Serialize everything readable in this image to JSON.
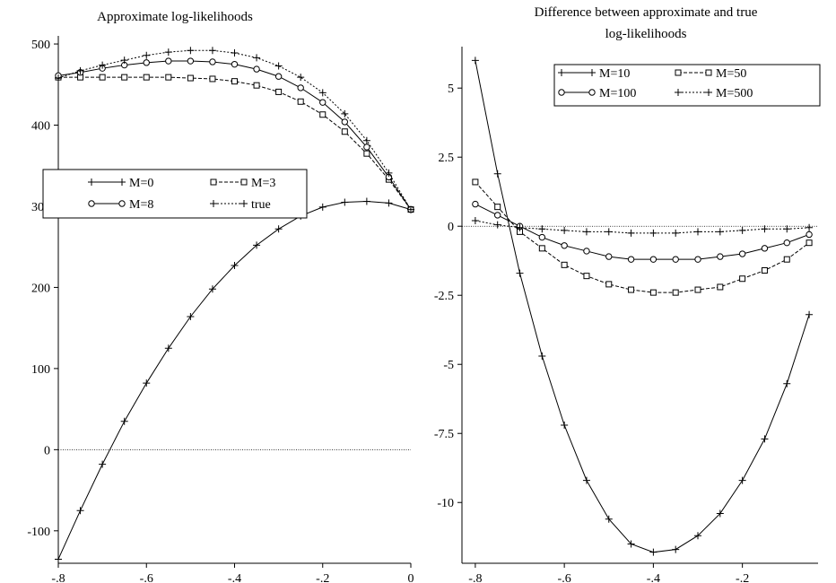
{
  "chart_data": [
    {
      "type": "line",
      "title": "Approximate log-likelihoods",
      "title_lines": [
        "Approximate log-likelihoods"
      ],
      "xlabel": "",
      "ylabel": "",
      "xlim": [
        -0.8,
        0
      ],
      "ylim": [
        -140,
        510
      ],
      "xticks": [
        -0.8,
        -0.6,
        -0.4,
        -0.2,
        0
      ],
      "xtick_labels": [
        "-.8",
        "-.6",
        "-.4",
        "-.2",
        "0"
      ],
      "yticks": [
        -100,
        0,
        100,
        200,
        300,
        400,
        500
      ],
      "ytick_labels": [
        "-100",
        "0",
        "100",
        "200",
        "300",
        "400",
        "500"
      ],
      "reference_line": 0,
      "grid": false,
      "legend_position": "center-left",
      "x": [
        -0.8,
        -0.75,
        -0.7,
        -0.65,
        -0.6,
        -0.55,
        -0.5,
        -0.45,
        -0.4,
        -0.35,
        -0.3,
        -0.25,
        -0.2,
        -0.15,
        -0.1,
        -0.05,
        0
      ],
      "series": [
        {
          "name": "M=0",
          "marker": "plus",
          "dash": "solid",
          "values": [
            -135,
            -75,
            -18,
            35,
            82,
            125,
            164,
            198,
            227,
            252,
            272,
            288,
            299,
            305,
            306,
            304,
            296
          ]
        },
        {
          "name": "M=3",
          "marker": "square",
          "dash": "dashed",
          "values": [
            459,
            459,
            459,
            459,
            459,
            459,
            458,
            457,
            454,
            449,
            441,
            429,
            413,
            392,
            365,
            333,
            296
          ]
        },
        {
          "name": "M=8",
          "marker": "circle",
          "dash": "solid",
          "values": [
            461,
            465,
            470,
            474,
            477,
            479,
            479,
            478,
            475,
            469,
            460,
            446,
            428,
            404,
            373,
            336,
            296
          ]
        },
        {
          "name": "true",
          "marker": "plus",
          "dash": "dotted",
          "values": [
            458,
            467,
            474,
            480,
            486,
            490,
            492,
            492,
            489,
            483,
            473,
            459,
            440,
            414,
            381,
            341,
            296
          ]
        }
      ]
    },
    {
      "type": "line",
      "title": "Difference between approximate and true log-likelihoods",
      "title_lines": [
        "Difference between approximate and true",
        "log-likelihoods"
      ],
      "xlabel": "",
      "ylabel": "",
      "xlim": [
        -0.83,
        -0.03
      ],
      "ylim": [
        -12.2,
        6.5
      ],
      "xticks": [
        -0.8,
        -0.6,
        -0.4,
        -0.2
      ],
      "xtick_labels": [
        "-.8",
        "-.6",
        "-.4",
        "-.2"
      ],
      "yticks": [
        -10,
        -7.5,
        -5,
        -2.5,
        0,
        2.5,
        5
      ],
      "ytick_labels": [
        "-10",
        "-7.5",
        "-5",
        "-2.5",
        "0",
        "2.5",
        "5"
      ],
      "reference_line": 0,
      "grid": false,
      "legend_position": "top",
      "x": [
        -0.8,
        -0.75,
        -0.7,
        -0.65,
        -0.6,
        -0.55,
        -0.5,
        -0.45,
        -0.4,
        -0.35,
        -0.3,
        -0.25,
        -0.2,
        -0.15,
        -0.1,
        -0.05
      ],
      "series": [
        {
          "name": "M=10",
          "marker": "plus",
          "dash": "solid",
          "values": [
            6.0,
            1.9,
            -1.7,
            -4.7,
            -7.2,
            -9.2,
            -10.6,
            -11.5,
            -11.8,
            -11.7,
            -11.2,
            -10.4,
            -9.2,
            -7.7,
            -5.7,
            -3.2
          ]
        },
        {
          "name": "M=50",
          "marker": "square",
          "dash": "dashed",
          "values": [
            1.6,
            0.7,
            -0.2,
            -0.8,
            -1.4,
            -1.8,
            -2.1,
            -2.3,
            -2.4,
            -2.4,
            -2.3,
            -2.2,
            -1.9,
            -1.6,
            -1.2,
            -0.6
          ]
        },
        {
          "name": "M=100",
          "marker": "circle",
          "dash": "solid",
          "values": [
            0.8,
            0.4,
            0.0,
            -0.4,
            -0.7,
            -0.9,
            -1.1,
            -1.2,
            -1.2,
            -1.2,
            -1.2,
            -1.1,
            -1.0,
            -0.8,
            -0.6,
            -0.3
          ]
        },
        {
          "name": "M=500",
          "marker": "plus",
          "dash": "dotted",
          "values": [
            0.2,
            0.05,
            -0.05,
            -0.1,
            -0.15,
            -0.2,
            -0.2,
            -0.25,
            -0.25,
            -0.25,
            -0.2,
            -0.2,
            -0.15,
            -0.1,
            -0.1,
            -0.05
          ]
        }
      ]
    }
  ]
}
